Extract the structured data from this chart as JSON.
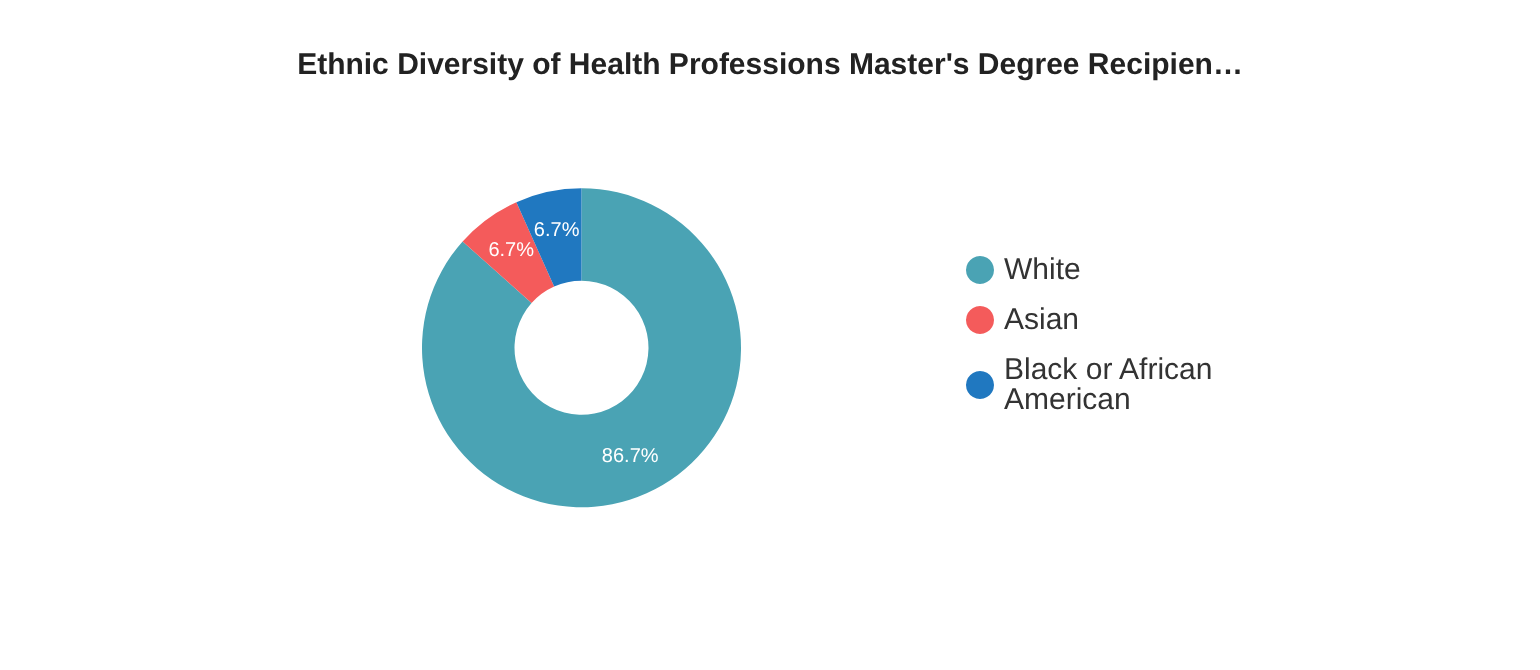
{
  "chart_data": {
    "type": "donut",
    "title": "Ethnic Diversity of Health Professions Master's Degree Recipien…",
    "categories": [
      "White",
      "Asian",
      "Black or African American"
    ],
    "values": [
      86.7,
      6.7,
      6.7
    ],
    "colors": [
      "#4aa3b4",
      "#f45b5b",
      "#2078c0"
    ],
    "value_labels": [
      "86.7%",
      "6.7%",
      "6.7%"
    ],
    "legend": "right"
  }
}
